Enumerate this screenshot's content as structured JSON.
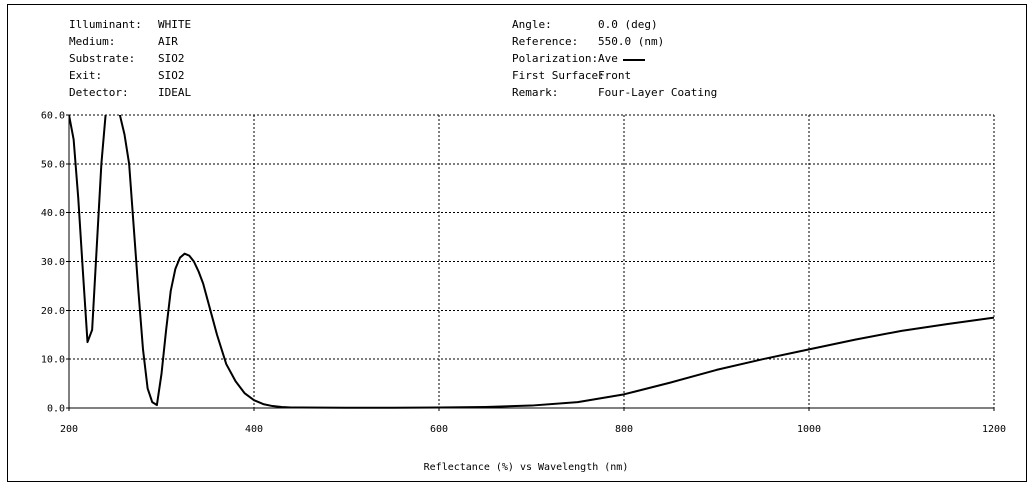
{
  "header": {
    "left": [
      {
        "label": "Illuminant:",
        "value": "WHITE"
      },
      {
        "label": "Medium:",
        "value": "AIR"
      },
      {
        "label": "Substrate:",
        "value": "SIO2"
      },
      {
        "label": "Exit:",
        "value": "SIO2"
      },
      {
        "label": "Detector:",
        "value": "IDEAL"
      }
    ],
    "right": [
      {
        "label": "Angle:",
        "value": "0.0 (deg)"
      },
      {
        "label": "Reference:",
        "value": "550.0 (nm)"
      },
      {
        "label": "Polarization:",
        "value": "Ave"
      },
      {
        "label": "First Surface:",
        "value": "Front"
      },
      {
        "label": "Remark:",
        "value": "Four-Layer Coating"
      }
    ]
  },
  "chart_data": {
    "type": "line",
    "title": "",
    "xlabel": "Reflectance (%)  vs  Wavelength (nm)",
    "ylabel": "",
    "xlim": [
      200,
      1200
    ],
    "ylim": [
      0,
      60
    ],
    "xticks": [
      "200",
      "400",
      "600",
      "800",
      "1000",
      "1200"
    ],
    "yticks": [
      "0.0",
      "10.0",
      "20.0",
      "30.0",
      "40.0",
      "50.0",
      "60.0"
    ],
    "grid": true,
    "line_color": "#000000",
    "series": [
      {
        "x": [
          200,
          205,
          210,
          215,
          220,
          225,
          230,
          235,
          240,
          245,
          250,
          255,
          260,
          265,
          270,
          275,
          280,
          285,
          290,
          295,
          300,
          305,
          310,
          315,
          320,
          325,
          330,
          335,
          340,
          345,
          350,
          360,
          370,
          380,
          390,
          400,
          410,
          420,
          430,
          440,
          450,
          500,
          550,
          600,
          650,
          700,
          750,
          800,
          850,
          900,
          950,
          1000,
          1050,
          1100,
          1150,
          1200
        ],
        "y": [
          60.0,
          55.0,
          43.0,
          28.0,
          13.5,
          16.0,
          33.0,
          50.0,
          61.0,
          65.0,
          63.0,
          60.0,
          56.0,
          50.0,
          37.0,
          24.0,
          12.0,
          4.0,
          1.2,
          0.6,
          7.0,
          16.0,
          24.0,
          28.5,
          30.8,
          31.6,
          31.2,
          30.0,
          28.0,
          25.5,
          22.0,
          15.0,
          9.0,
          5.5,
          3.0,
          1.6,
          0.8,
          0.4,
          0.2,
          0.1,
          0.1,
          0.05,
          0.05,
          0.1,
          0.2,
          0.5,
          1.2,
          2.8,
          5.2,
          7.8,
          10.0,
          12.0,
          14.0,
          15.8,
          17.2,
          18.5
        ]
      }
    ]
  }
}
